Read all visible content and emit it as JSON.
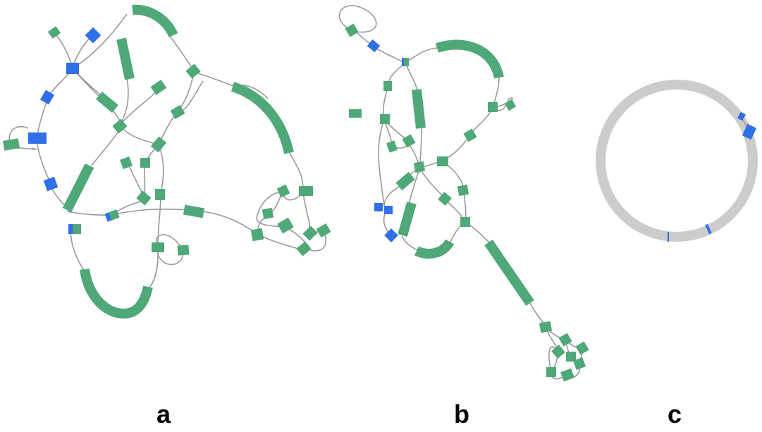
{
  "panels": [
    {
      "label": "a"
    },
    {
      "label": "b"
    },
    {
      "label": "c"
    }
  ],
  "colors": {
    "segment": "#4fa877",
    "highlight": "#2f6fe8",
    "edge": "#999999",
    "circle": "#cccccc",
    "background": "#ffffff"
  }
}
